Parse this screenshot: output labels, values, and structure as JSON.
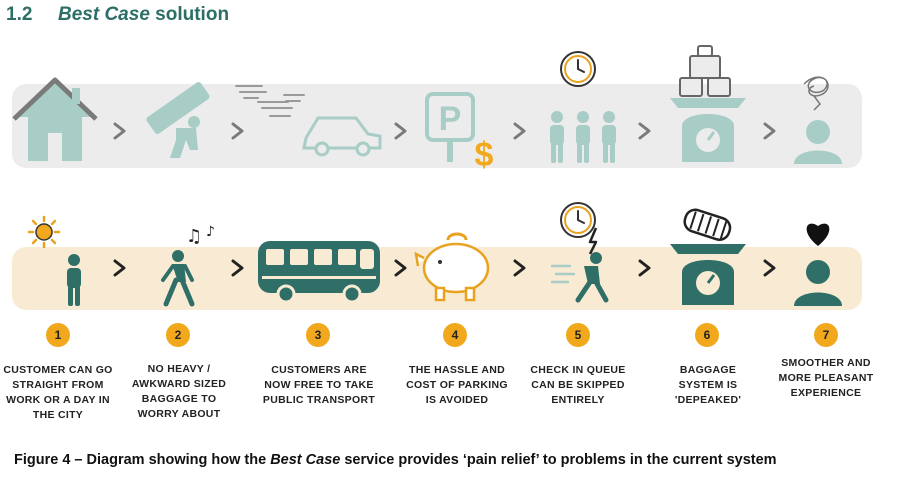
{
  "heading": {
    "number": "1.2",
    "title_italic": "Best Case",
    "title_rest": " solution"
  },
  "steps": [
    {
      "number": "1",
      "text": "Customer can go straight from work or a day in the city"
    },
    {
      "number": "2",
      "text": "No heavy / awkward sized baggage to worry about"
    },
    {
      "number": "3",
      "text": "Customers are now free to take public transport"
    },
    {
      "number": "4",
      "text": "The hassle and cost of parking is avoided"
    },
    {
      "number": "5",
      "text": "Check in queue can be skipped entirely"
    },
    {
      "number": "6",
      "text": "Baggage system is 'depeaked'"
    },
    {
      "number": "7",
      "text": "Smoother and more pleasant experience"
    }
  ],
  "caption": {
    "prefix": "Figure 4 – Diagram showing how the ",
    "italic": "Best Case",
    "suffix": " service provides ‘pain relief’ to problems in the current system"
  },
  "colors": {
    "heading": "#2d6e67",
    "icon_teal": "#2f6f68",
    "icon_faded": "#a8ccc6",
    "badge": "#f2a81d",
    "band_top": "#ececec",
    "band_bottom": "#f9ebd3"
  }
}
